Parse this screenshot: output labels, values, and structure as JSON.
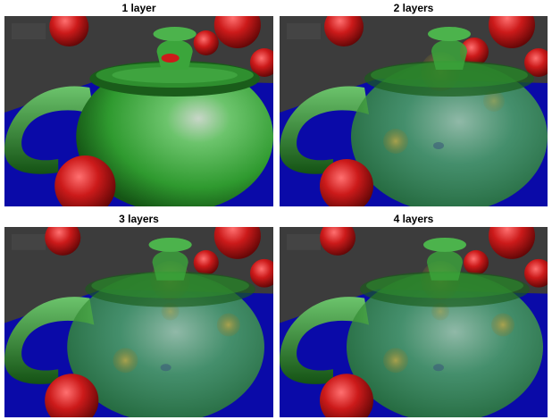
{
  "panels": [
    {
      "label": "1 layer"
    },
    {
      "label": "2 layers"
    },
    {
      "label": "3 layers"
    },
    {
      "label": "4 layers"
    }
  ],
  "colors": {
    "background": "#3c3c3c",
    "floor": "#0a0aa8",
    "teapot": "#2f9a2f",
    "sphere": "#c81414"
  }
}
